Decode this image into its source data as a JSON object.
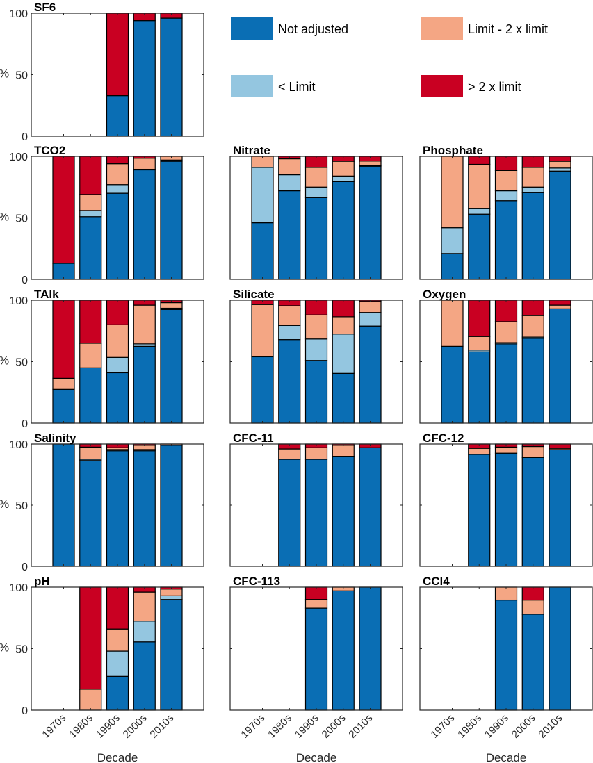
{
  "chart_data": {
    "type": "bar",
    "stacked": true,
    "categories": [
      "1970s",
      "1980s",
      "1990s",
      "2000s",
      "2010s"
    ],
    "xlabel": "Decade",
    "ylabel": "%",
    "ylim": [
      0,
      100
    ],
    "yticks": [
      0,
      50,
      100
    ],
    "grid": false,
    "legend": {
      "placement": "top-right",
      "entries": [
        {
          "name": "Not adjusted",
          "color": "#0a6eb4"
        },
        {
          "name": "< Limit",
          "color": "#94c6e0"
        },
        {
          "name": "Limit - 2 x limit",
          "color": "#f4a684"
        },
        {
          "name": "> 2 x limit",
          "color": "#c90022"
        }
      ]
    },
    "series_order": [
      "Not adjusted",
      "< Limit",
      "Limit - 2 x limit",
      "> 2 x limit"
    ],
    "panels": [
      {
        "title": "SF6",
        "row": 0,
        "col": 0,
        "show_yticks": true,
        "show_xticks": false,
        "values": [
          null,
          null,
          [
            33,
            0,
            0,
            67
          ],
          [
            94,
            0,
            0,
            6
          ],
          [
            96,
            0,
            0,
            4
          ]
        ]
      },
      {
        "title": "TCO2",
        "row": 1,
        "col": 0,
        "show_yticks": true,
        "show_xticks": false,
        "values": [
          [
            13,
            0,
            0,
            87
          ],
          [
            51,
            5,
            13,
            31
          ],
          [
            70,
            7,
            17,
            6
          ],
          [
            89,
            0.5,
            9,
            1.5
          ],
          [
            96,
            1,
            3,
            0
          ]
        ]
      },
      {
        "title": "Nitrate",
        "row": 1,
        "col": 1,
        "show_yticks": false,
        "show_xticks": false,
        "values": [
          [
            46,
            45,
            9,
            0
          ],
          [
            72,
            13,
            13,
            2
          ],
          [
            66.5,
            8.5,
            16,
            9
          ],
          [
            79.5,
            4.5,
            12,
            4
          ],
          [
            92,
            0.5,
            3.7,
            3.8
          ]
        ]
      },
      {
        "title": "Phosphate",
        "row": 1,
        "col": 2,
        "show_yticks": false,
        "show_xticks": false,
        "values": [
          [
            21,
            21,
            58,
            0
          ],
          [
            53,
            4.5,
            36,
            6.5
          ],
          [
            64,
            8,
            16.5,
            11.5
          ],
          [
            70.5,
            4.5,
            16,
            9
          ],
          [
            88,
            2.5,
            5.5,
            4
          ]
        ]
      },
      {
        "title": "TAlk",
        "row": 2,
        "col": 0,
        "show_yticks": true,
        "show_xticks": false,
        "values": [
          [
            27.5,
            0,
            9,
            63.5
          ],
          [
            45,
            0,
            20,
            35
          ],
          [
            41,
            12.5,
            26.5,
            20
          ],
          [
            62.5,
            2,
            31.5,
            4
          ],
          [
            92.5,
            1,
            4.5,
            2
          ]
        ]
      },
      {
        "title": "Silicate",
        "row": 2,
        "col": 1,
        "show_yticks": false,
        "show_xticks": false,
        "values": [
          [
            54,
            0,
            42.5,
            3.5
          ],
          [
            68,
            11.5,
            16,
            4.5
          ],
          [
            51,
            17.5,
            19.5,
            12
          ],
          [
            40.5,
            32,
            14,
            13.5
          ],
          [
            79,
            11,
            9,
            1
          ]
        ]
      },
      {
        "title": "Oxygen",
        "row": 2,
        "col": 2,
        "show_yticks": false,
        "show_xticks": false,
        "values": [
          [
            62.5,
            0,
            37.5,
            0
          ],
          [
            58,
            1.5,
            11,
            29.5
          ],
          [
            64.5,
            1,
            17,
            17.5
          ],
          [
            69,
            1,
            17.5,
            12.5
          ],
          [
            93,
            0,
            3,
            4
          ]
        ]
      },
      {
        "title": "Salinity",
        "row": 3,
        "col": 0,
        "show_yticks": true,
        "show_xticks": false,
        "values": [
          [
            100,
            0,
            0,
            0
          ],
          [
            86.5,
            1,
            10,
            2.5
          ],
          [
            94.5,
            1,
            1.5,
            3
          ],
          [
            94.5,
            1,
            3.5,
            1
          ],
          [
            99,
            0,
            1,
            0
          ]
        ]
      },
      {
        "title": "CFC-11",
        "row": 3,
        "col": 1,
        "show_yticks": false,
        "show_xticks": false,
        "values": [
          null,
          [
            87.5,
            0,
            8.5,
            4
          ],
          [
            87.5,
            0,
            9.5,
            3
          ],
          [
            90,
            0,
            9,
            1
          ],
          [
            97,
            0,
            0,
            3
          ]
        ]
      },
      {
        "title": "CFC-12",
        "row": 3,
        "col": 2,
        "show_yticks": false,
        "show_xticks": false,
        "values": [
          null,
          [
            91.5,
            0,
            5,
            3.5
          ],
          [
            92.5,
            0,
            5,
            2.5
          ],
          [
            89,
            0,
            9,
            2
          ],
          [
            95.5,
            0,
            1,
            3.5
          ]
        ]
      },
      {
        "title": "pH",
        "row": 4,
        "col": 0,
        "show_yticks": true,
        "show_xticks": true,
        "values": [
          null,
          [
            0,
            0,
            17,
            83
          ],
          [
            27.5,
            20.5,
            18,
            34
          ],
          [
            55.5,
            17,
            23.5,
            4
          ],
          [
            90,
            3,
            5.5,
            1.5
          ]
        ]
      },
      {
        "title": "CFC-113",
        "row": 4,
        "col": 1,
        "show_yticks": false,
        "show_xticks": true,
        "values": [
          null,
          null,
          [
            83,
            0,
            7,
            10
          ],
          [
            97,
            0,
            3,
            0
          ],
          [
            100,
            0,
            0,
            0
          ]
        ]
      },
      {
        "title": "CCl4",
        "row": 4,
        "col": 2,
        "show_yticks": false,
        "show_xticks": true,
        "values": [
          null,
          null,
          [
            89.5,
            0,
            10.5,
            0
          ],
          [
            78,
            0,
            11.5,
            10.5
          ],
          [
            100,
            0,
            0,
            0
          ]
        ]
      }
    ]
  }
}
